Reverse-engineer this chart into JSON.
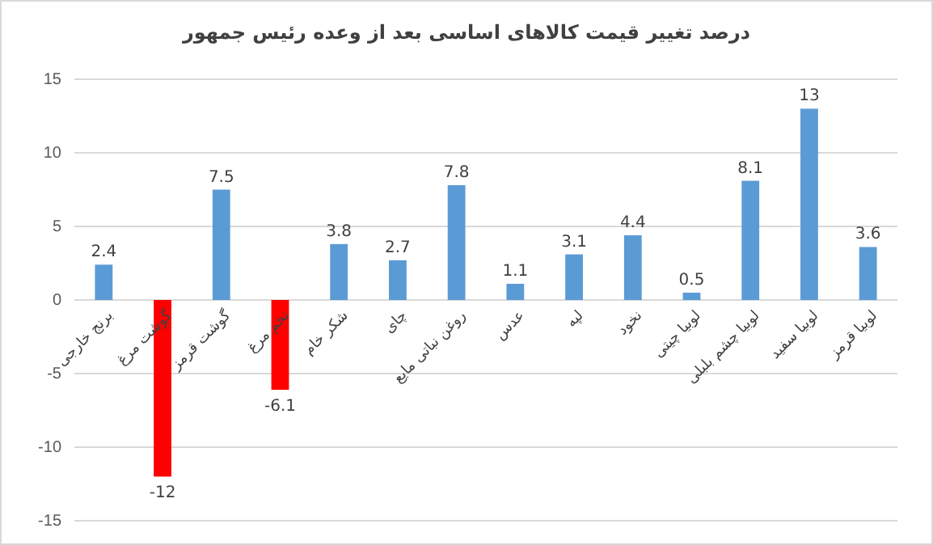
{
  "chart_data": {
    "type": "bar",
    "title": "درصد تغییر قیمت کالاهای اساسی بعد از وعده رئیس جمهور",
    "categories": [
      "برنج خارجی",
      "گوشت مرغ",
      "گوشت قرمز",
      "تخم مرغ",
      "شکر خام",
      "چای",
      "روغن نباتی مایع",
      "عدس",
      "لپه",
      "نخود",
      "لوبیا چیتی",
      "لوبیا چشم بلبلی",
      "لوبیا سفید",
      "لوبیا قرمز"
    ],
    "values": [
      2.4,
      -12,
      7.5,
      -6.1,
      3.8,
      2.7,
      7.8,
      1.1,
      3.1,
      4.4,
      0.5,
      8.1,
      13,
      3.6
    ],
    "colors": [
      "#5b9bd5",
      "#ff0000",
      "#5b9bd5",
      "#ff0000",
      "#5b9bd5",
      "#5b9bd5",
      "#5b9bd5",
      "#5b9bd5",
      "#5b9bd5",
      "#5b9bd5",
      "#5b9bd5",
      "#5b9bd5",
      "#5b9bd5",
      "#5b9bd5"
    ],
    "ylim": [
      -15,
      15
    ],
    "yticks": [
      -15,
      -10,
      -5,
      0,
      5,
      10,
      15
    ],
    "grid": "y",
    "data_labels": true
  }
}
